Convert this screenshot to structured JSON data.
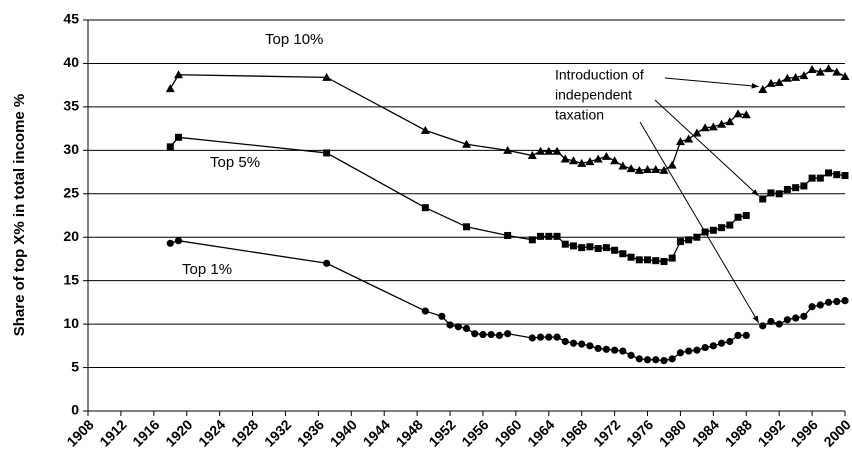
{
  "chart_data": {
    "type": "line",
    "y_label": "Share of top X% in total income %",
    "xlim": [
      1908,
      2000
    ],
    "xticks": [
      1908,
      1912,
      1916,
      1920,
      1924,
      1928,
      1932,
      1936,
      1940,
      1944,
      1948,
      1952,
      1956,
      1960,
      1964,
      1968,
      1972,
      1976,
      1980,
      1984,
      1988,
      1992,
      1996,
      2000
    ],
    "ylim": [
      0,
      45
    ],
    "yticks": [
      0,
      5,
      10,
      15,
      20,
      25,
      30,
      35,
      40,
      45
    ],
    "grid": true,
    "series": [
      {
        "name": "Top 10%",
        "color": "#000000",
        "marker": "triangle",
        "x": [
          1918,
          1919,
          1937,
          1949,
          1954,
          1959,
          1962,
          1963,
          1964,
          1965,
          1966,
          1967,
          1968,
          1969,
          1970,
          1971,
          1972,
          1973,
          1974,
          1975,
          1976,
          1977,
          1978,
          1979,
          1980,
          1981,
          1982,
          1983,
          1984,
          1985,
          1986,
          1987,
          1988,
          1989,
          1990,
          1991,
          1992,
          1993,
          1994,
          1995,
          1996,
          1997,
          1998,
          1999,
          2000
        ],
        "values": [
          37.1,
          38.7,
          38.4,
          32.3,
          30.7,
          30.0,
          29.4,
          29.9,
          29.9,
          29.9,
          29.0,
          28.8,
          28.5,
          28.7,
          29.0,
          29.3,
          28.8,
          28.2,
          27.9,
          27.7,
          27.8,
          27.8,
          27.7,
          28.3,
          31.0,
          31.3,
          32.0,
          32.6,
          32.7,
          33.0,
          33.3,
          34.2,
          34.1,
          null,
          37.0,
          37.7,
          37.8,
          38.3,
          38.4,
          38.6,
          39.3,
          39.0,
          39.4,
          39.0,
          38.5
        ]
      },
      {
        "name": "Top 5%",
        "color": "#000000",
        "marker": "square",
        "x": [
          1918,
          1919,
          1937,
          1949,
          1954,
          1959,
          1962,
          1963,
          1964,
          1965,
          1966,
          1967,
          1968,
          1969,
          1970,
          1971,
          1972,
          1973,
          1974,
          1975,
          1976,
          1977,
          1978,
          1979,
          1980,
          1981,
          1982,
          1983,
          1984,
          1985,
          1986,
          1987,
          1988,
          1989,
          1990,
          1991,
          1992,
          1993,
          1994,
          1995,
          1996,
          1997,
          1998,
          1999,
          2000
        ],
        "values": [
          30.4,
          31.5,
          29.7,
          23.4,
          21.2,
          20.2,
          19.7,
          20.1,
          20.1,
          20.1,
          19.2,
          19.0,
          18.8,
          18.9,
          18.7,
          18.8,
          18.5,
          18.1,
          17.7,
          17.4,
          17.4,
          17.3,
          17.2,
          17.6,
          19.5,
          19.7,
          20.0,
          20.6,
          20.8,
          21.1,
          21.4,
          22.3,
          22.5,
          null,
          24.4,
          25.1,
          25.0,
          25.5,
          25.7,
          25.9,
          26.8,
          26.8,
          27.4,
          27.2,
          27.1
        ]
      },
      {
        "name": "Top 1%",
        "color": "#000000",
        "marker": "circle",
        "x": [
          1918,
          1919,
          1937,
          1949,
          1951,
          1952,
          1953,
          1954,
          1955,
          1956,
          1957,
          1958,
          1959,
          1962,
          1963,
          1964,
          1965,
          1966,
          1967,
          1968,
          1969,
          1970,
          1971,
          1972,
          1973,
          1974,
          1975,
          1976,
          1977,
          1978,
          1979,
          1980,
          1981,
          1982,
          1983,
          1984,
          1985,
          1986,
          1987,
          1988,
          1989,
          1990,
          1991,
          1992,
          1993,
          1994,
          1995,
          1996,
          1997,
          1998,
          1999,
          2000
        ],
        "values": [
          19.3,
          19.6,
          17.0,
          11.5,
          10.9,
          9.9,
          9.7,
          9.5,
          8.9,
          8.8,
          8.8,
          8.7,
          8.9,
          8.4,
          8.5,
          8.5,
          8.5,
          8.0,
          7.8,
          7.7,
          7.5,
          7.2,
          7.1,
          7.0,
          6.9,
          6.4,
          6.0,
          5.9,
          5.9,
          5.8,
          6.0,
          6.7,
          6.9,
          7.0,
          7.3,
          7.5,
          7.8,
          8.0,
          8.7,
          8.7,
          null,
          9.8,
          10.3,
          10.0,
          10.5,
          10.7,
          10.9,
          12.0,
          12.2,
          12.5,
          12.6,
          12.7
        ]
      }
    ],
    "annotation": [
      "Introduction of",
      "independent",
      "taxation"
    ]
  }
}
